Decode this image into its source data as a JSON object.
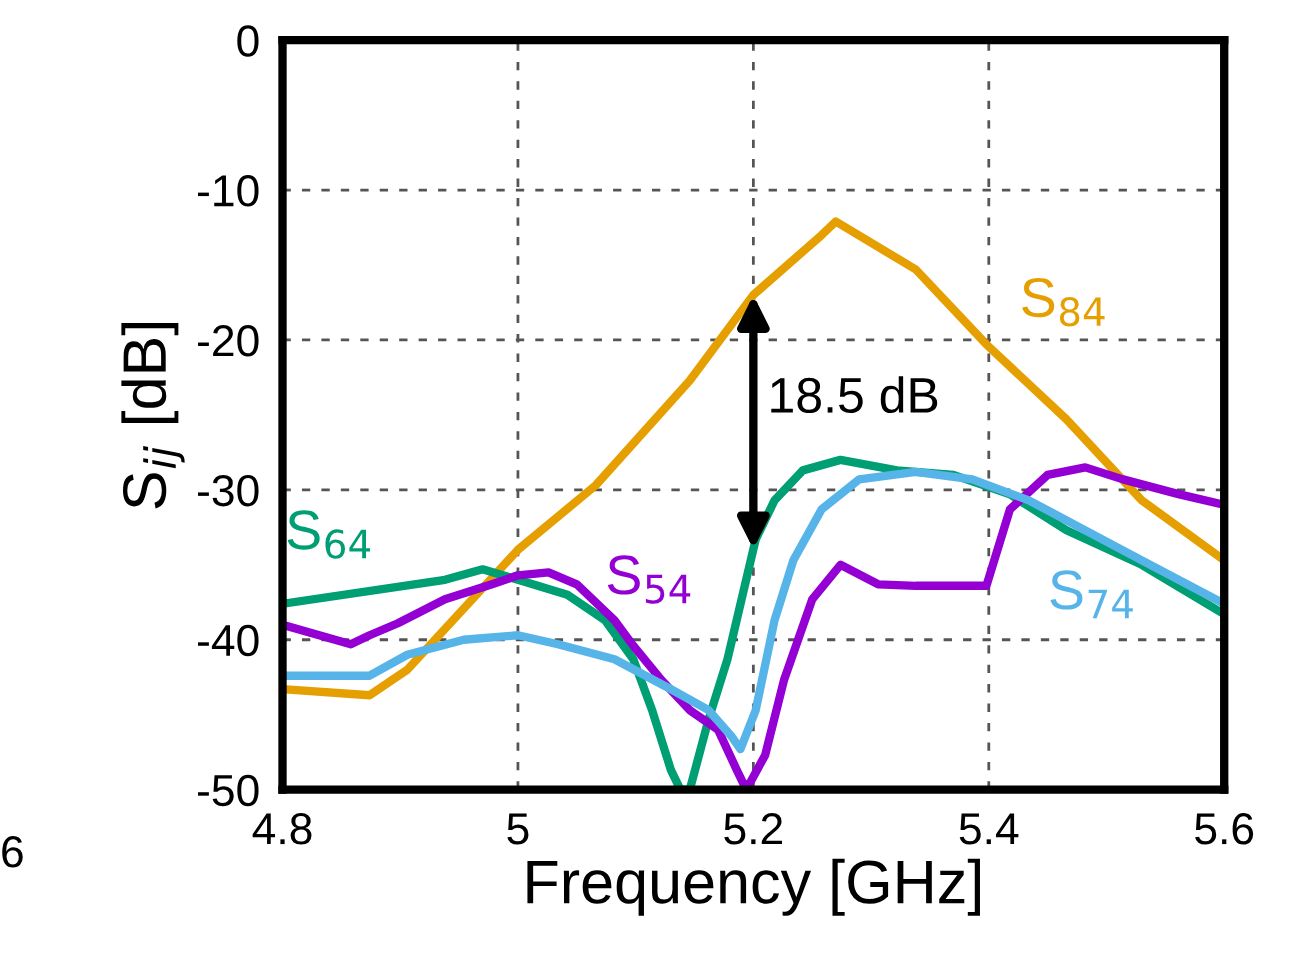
{
  "chart_data": {
    "type": "line",
    "xlabel": "Frequency [GHz]",
    "ylabel": "S$_{ij}$ [dB]",
    "xlim": [
      4.8,
      5.6
    ],
    "xticks": [
      4.8,
      5,
      5.2,
      5.4,
      5.6
    ],
    "ylim": [
      -50,
      0
    ],
    "yticks": [
      -50,
      -40,
      -30,
      -20,
      -10,
      0
    ],
    "grid": true,
    "line_style": "solid",
    "marker": "none",
    "series": [
      {
        "name": "S$_{84}$",
        "color": "#e69f00",
        "x": [
          4.8,
          4.874,
          4.906,
          5.0,
          5.066,
          5.146,
          5.2,
          5.258,
          5.27,
          5.338,
          5.398,
          5.466,
          5.53,
          5.6
        ],
        "values": [
          -43.3,
          -43.7,
          -42,
          -34,
          -29.7,
          -22.7,
          -17,
          -13,
          -12.1,
          -15.3,
          -20.3,
          -25.3,
          -30.7,
          -34.7
        ]
      },
      {
        "name": "S$_{64}$",
        "color": "#009e73",
        "x": [
          4.8,
          4.938,
          4.97,
          5.0,
          5.042,
          5.074,
          5.098,
          5.114,
          5.13,
          5.138,
          5.146,
          5.162,
          5.178,
          5.19,
          5.202,
          5.218,
          5.242,
          5.274,
          5.322,
          5.37,
          5.418,
          5.466,
          5.53,
          5.6
        ],
        "values": [
          -37.6,
          -36,
          -35.3,
          -36,
          -37,
          -38.7,
          -41.3,
          -44.7,
          -48.7,
          -50,
          -50,
          -45.3,
          -41.3,
          -37.3,
          -33.3,
          -30.7,
          -28.7,
          -28,
          -28.7,
          -29,
          -30.3,
          -32.7,
          -35,
          -38.3
        ]
      },
      {
        "name": "S$_{54}$",
        "color": "#9400d3",
        "x": [
          4.8,
          4.858,
          4.874,
          4.898,
          4.938,
          4.978,
          5.0,
          5.026,
          5.05,
          5.082,
          5.098,
          5.122,
          5.146,
          5.17,
          5.186,
          5.194,
          5.21,
          5.226,
          5.25,
          5.274,
          5.306,
          5.338,
          5.398,
          5.418,
          5.45,
          5.482,
          5.514,
          5.562,
          5.6
        ],
        "values": [
          -39,
          -40.3,
          -39.7,
          -38.9,
          -37.3,
          -36.3,
          -35.7,
          -35.5,
          -36.3,
          -38.7,
          -40.4,
          -42.7,
          -44.7,
          -46,
          -48.7,
          -50,
          -47.7,
          -42.7,
          -37.3,
          -35,
          -36.3,
          -36.4,
          -36.4,
          -31.3,
          -29,
          -28.5,
          -29.3,
          -30.3,
          -31
        ]
      },
      {
        "name": "S$_{74}$",
        "color": "#56b4e9",
        "x": [
          4.8,
          4.874,
          4.906,
          4.954,
          5.0,
          5.034,
          5.082,
          5.13,
          5.162,
          5.181,
          5.189,
          5.202,
          5.218,
          5.234,
          5.258,
          5.29,
          5.338,
          5.386,
          5.434,
          5.482,
          5.53,
          5.6
        ],
        "values": [
          -42.4,
          -42.4,
          -41,
          -40,
          -39.7,
          -40.3,
          -41.3,
          -43.3,
          -44.7,
          -46.4,
          -47.3,
          -44.7,
          -38.7,
          -34.7,
          -31.3,
          -29.3,
          -28.8,
          -29.3,
          -30.7,
          -32.7,
          -34.7,
          -37.6
        ]
      }
    ],
    "annotations": [
      {
        "text": "18.5 dB",
        "x": 5.2,
        "y": -17
      },
      "6"
    ]
  }
}
